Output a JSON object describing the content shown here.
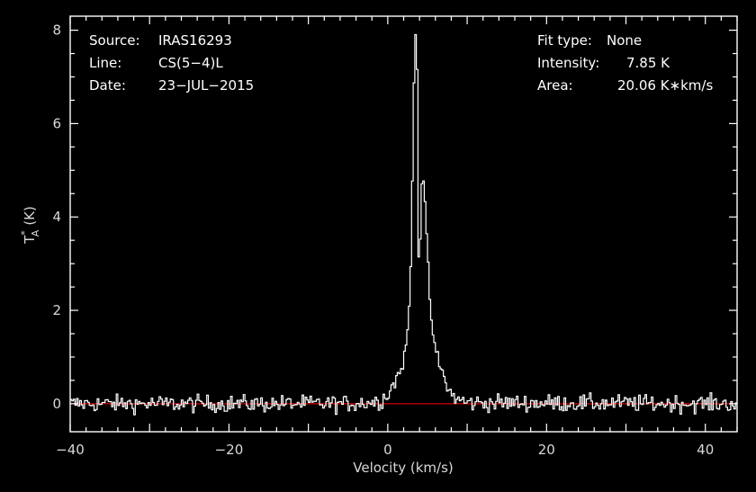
{
  "info_left": [
    {
      "label": "Source:",
      "value": "IRAS16293"
    },
    {
      "label": "Line:",
      "value": "CS(5−4)L"
    },
    {
      "label": "Date:",
      "value": "23−JUL−2015"
    }
  ],
  "info_right": [
    {
      "label": "Fit type:",
      "value": "None"
    },
    {
      "label": "Intensity:",
      "value": "7.85 K"
    },
    {
      "label": "Area:",
      "value": "20.06 K∗km/s"
    }
  ],
  "colors": {
    "background": "#000000",
    "frame": "#ffffff",
    "spectrum": "#ffffff",
    "baseline": "#cc0000"
  },
  "chart_data": {
    "type": "line",
    "style": "histogram-step",
    "xlabel": "Velocity (km/s)",
    "ylabel_main": "T",
    "ylabel_sub": "A",
    "ylabel_sup": "*",
    "ylabel_unit": "(K)",
    "xlim": [
      -40,
      44
    ],
    "ylim": [
      -0.6,
      8.3
    ],
    "x_ticks": [
      -40,
      -20,
      0,
      20,
      40
    ],
    "x_tick_labels": [
      "−40",
      "−20",
      "0",
      "20",
      "40"
    ],
    "y_ticks": [
      0,
      2,
      4,
      6,
      8
    ],
    "y_tick_labels": [
      "0",
      "2",
      "4",
      "6",
      "8"
    ],
    "baseline_y": 0,
    "channel_width_kms": 0.2,
    "series": [
      {
        "noise_rms": 0.09,
        "profile_points": [
          [
            -40,
            0.0
          ],
          [
            -5,
            0.0
          ],
          [
            -1,
            0.05
          ],
          [
            0,
            0.2
          ],
          [
            0.8,
            0.45
          ],
          [
            1.6,
            0.7
          ],
          [
            2.2,
            1.1
          ],
          [
            2.6,
            1.7
          ],
          [
            2.9,
            2.9
          ],
          [
            3.1,
            4.8
          ],
          [
            3.3,
            6.9
          ],
          [
            3.5,
            7.85
          ],
          [
            3.7,
            7.3
          ],
          [
            3.9,
            3.2
          ],
          [
            4.0,
            1.65
          ],
          [
            4.1,
            3.5
          ],
          [
            4.3,
            4.8
          ],
          [
            4.6,
            4.75
          ],
          [
            4.9,
            3.6
          ],
          [
            5.3,
            2.2
          ],
          [
            5.8,
            1.3
          ],
          [
            6.4,
            0.9
          ],
          [
            7.2,
            0.5
          ],
          [
            7.8,
            0.25
          ],
          [
            8.5,
            0.12
          ],
          [
            10,
            0.02
          ],
          [
            44,
            0.0
          ]
        ]
      }
    ]
  }
}
